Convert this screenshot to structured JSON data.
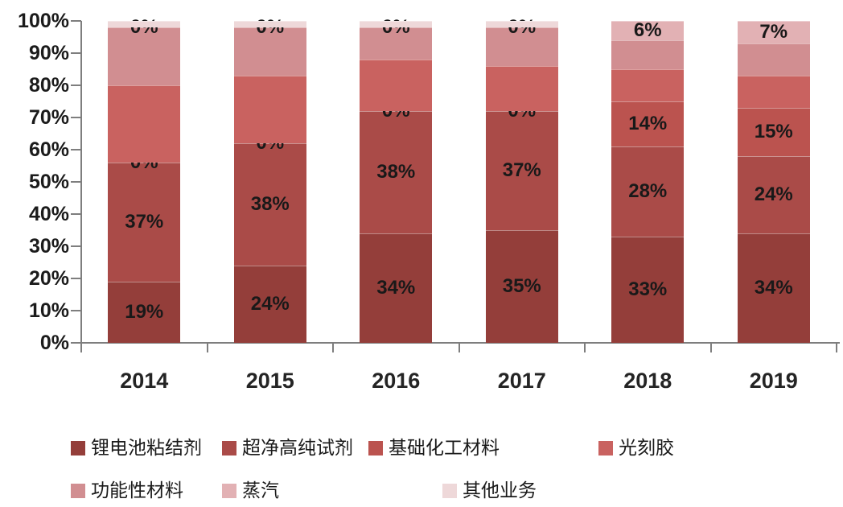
{
  "chart_data": {
    "type": "bar",
    "stacked": true,
    "percent_stacked": true,
    "title": "",
    "xlabel": "",
    "ylabel": "",
    "ylim": [
      0,
      100
    ],
    "grid": false,
    "legend_position": "bottom",
    "categories": [
      "2014",
      "2015",
      "2016",
      "2017",
      "2018",
      "2019"
    ],
    "y_ticks": [
      "0%",
      "10%",
      "20%",
      "30%",
      "40%",
      "50%",
      "60%",
      "70%",
      "80%",
      "90%",
      "100%"
    ],
    "series": [
      {
        "name": "锂电池粘结剂",
        "color": "#943e3a",
        "values": [
          19,
          24,
          34,
          35,
          33,
          34
        ],
        "show_labels": true,
        "labels": [
          "19%",
          "24%",
          "34%",
          "35%",
          "33%",
          "34%"
        ]
      },
      {
        "name": "超净高纯试剂",
        "color": "#aa4b48",
        "values": [
          37,
          38,
          38,
          37,
          28,
          24
        ],
        "show_labels": true,
        "labels": [
          "37%",
          "38%",
          "38%",
          "37%",
          "28%",
          "24%"
        ]
      },
      {
        "name": "基础化工材料",
        "color": "#bb534f",
        "values": [
          0,
          0,
          0,
          0,
          14,
          15
        ],
        "show_labels": true,
        "labels": [
          "0%",
          "0%",
          "0%",
          "0%",
          "14%",
          "15%"
        ]
      },
      {
        "name": "光刻胶",
        "color": "#c96260",
        "values": [
          24,
          21,
          16,
          14,
          10,
          10
        ],
        "show_labels": false,
        "labels": null
      },
      {
        "name": "功能性材料",
        "color": "#d18e91",
        "values": [
          18,
          15,
          10,
          12,
          9,
          10
        ],
        "show_labels": false,
        "labels": null
      },
      {
        "name": "蒸汽",
        "color": "#e2b1b4",
        "values": [
          0,
          0,
          0,
          0,
          6,
          7
        ],
        "show_labels": true,
        "labels": [
          "0%",
          "0%",
          "0%",
          "0%",
          "6%",
          "7%"
        ]
      },
      {
        "name": "其他业务",
        "color": "#eed8d9",
        "values": [
          2,
          2,
          2,
          2,
          0,
          0
        ],
        "show_labels": false,
        "labels": null
      }
    ]
  },
  "style": {
    "background": "#ffffff",
    "axis_color": "#7e7e7e",
    "label_color": "#191919"
  }
}
